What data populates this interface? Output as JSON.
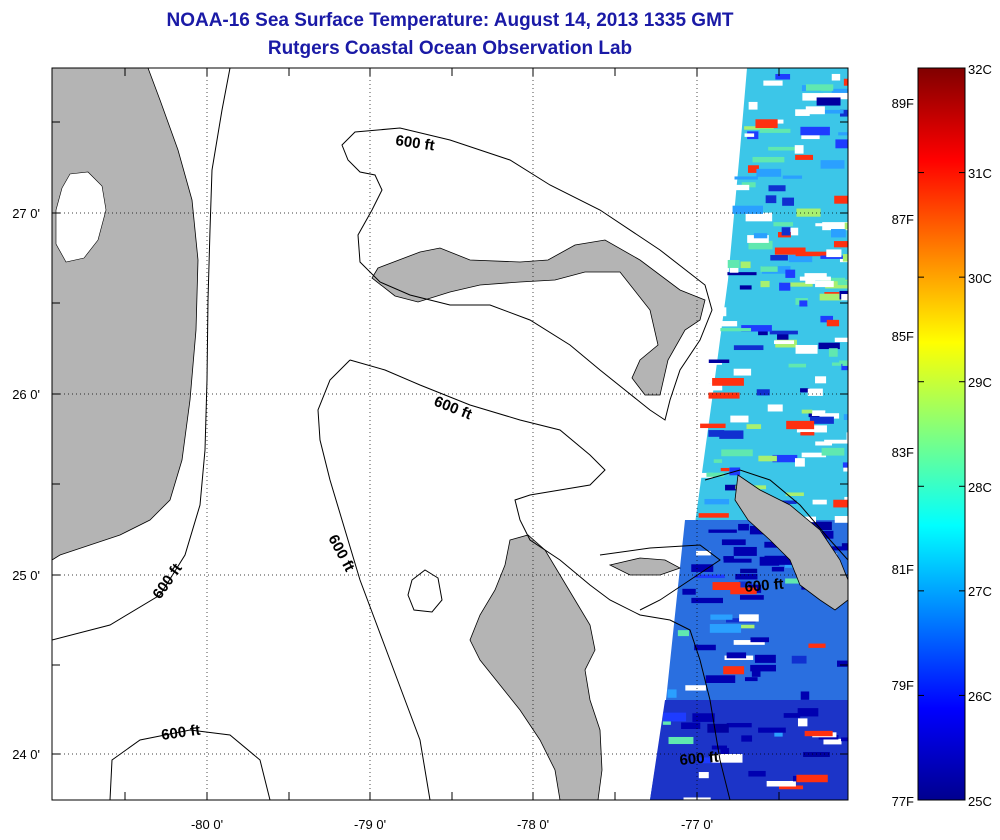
{
  "title": {
    "line1": "NOAA-16 Sea Surface Temperature:  August 14, 2013 1335 GMT",
    "line2": "Rutgers Coastal Ocean Observation Lab"
  },
  "map": {
    "lon_labels": [
      "-80 0'",
      "-79 0'",
      "-78 0'",
      "-77 0'"
    ],
    "lat_labels": [
      "27 0'",
      "26 0'",
      "25 0'",
      "24 0'"
    ],
    "lon_range": [
      -80.95,
      -76.0
    ],
    "lat_range": [
      23.75,
      27.8
    ],
    "contour_label": "600 ft",
    "land_color": "#b4b4b4"
  },
  "colorbar": {
    "celsius_labels": [
      "32C",
      "31C",
      "30C",
      "29C",
      "28C",
      "27C",
      "26C",
      "25C"
    ],
    "fahrenheit_labels": [
      "89F",
      "87F",
      "85F",
      "83F",
      "81F",
      "79F",
      "77F"
    ],
    "range_c": [
      25,
      32
    ]
  }
}
